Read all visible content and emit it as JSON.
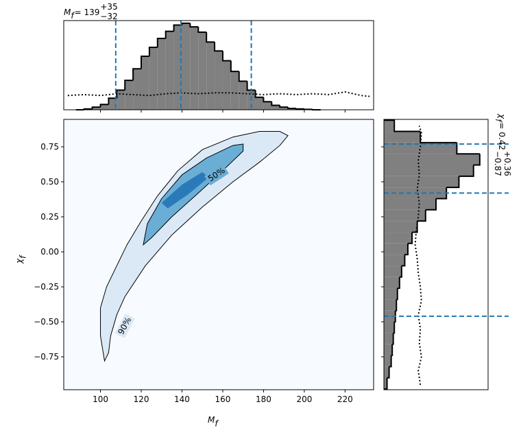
{
  "chart_data": {
    "type": "corner",
    "top_title": {
      "base": "M",
      "sub": "f",
      "eq": " = 139",
      "plus": "+35",
      "minus": "−32"
    },
    "right_title": {
      "base": "χ",
      "sub": "f",
      "eq": " = 0.42",
      "plus": "+0.36",
      "minus": "−0.87"
    },
    "xlabel": {
      "base": "M",
      "sub": "f"
    },
    "ylabel": {
      "base": "χ",
      "sub": "f"
    },
    "xlim": [
      82,
      234
    ],
    "ylim": [
      -0.985,
      0.946
    ],
    "xticks": [
      100,
      120,
      140,
      160,
      180,
      200,
      220
    ],
    "yticks": [
      {
        "value": -0.75,
        "label": "−0.75"
      },
      {
        "value": -0.5,
        "label": "−0.50"
      },
      {
        "value": -0.25,
        "label": "−0.25"
      },
      {
        "value": 0,
        "label": "0.00"
      },
      0.25,
      {
        "value": 0.5,
        "label": "0.50"
      },
      0.75
    ],
    "background": "#f7fbff",
    "contours": [
      {
        "label": "90%",
        "fill": "#dbe9f6",
        "x": [
          102,
          100,
          100,
          103,
          108,
          113,
          120,
          128,
          138,
          150,
          165,
          178,
          188,
          192,
          188,
          178,
          165,
          150,
          135,
          122,
          112,
          108,
          105,
          104
        ],
        "y": [
          -0.78,
          -0.6,
          -0.4,
          -0.25,
          -0.1,
          0.05,
          0.22,
          0.4,
          0.58,
          0.73,
          0.82,
          0.86,
          0.86,
          0.83,
          0.76,
          0.64,
          0.5,
          0.32,
          0.12,
          -0.1,
          -0.32,
          -0.45,
          -0.6,
          -0.72
        ]
      },
      {
        "label": "50%",
        "fill": "#6aaed6",
        "x": [
          121,
          123,
          130,
          140,
          152,
          165,
          170,
          170,
          160,
          148,
          135,
          125
        ],
        "y": [
          0.05,
          0.2,
          0.38,
          0.55,
          0.67,
          0.76,
          0.77,
          0.72,
          0.58,
          0.42,
          0.25,
          0.1
        ]
      },
      {
        "fill": "#2a7ab9",
        "x": [
          130,
          140,
          150,
          153,
          143,
          133
        ],
        "y": [
          0.35,
          0.48,
          0.57,
          0.53,
          0.41,
          0.31
        ]
      }
    ],
    "hist_color": "#808080",
    "quantile_color": "#1f77b4",
    "top_hist": {
      "ylim": [
        0,
        1.0
      ],
      "bins": [
        88,
        92,
        96,
        100,
        104,
        108,
        112,
        116,
        120,
        124,
        128,
        132,
        136,
        140,
        144,
        148,
        152,
        156,
        160,
        164,
        168,
        172,
        176,
        180,
        184,
        188,
        192,
        196,
        200,
        204,
        208
      ],
      "values": [
        0.0,
        0.01,
        0.03,
        0.06,
        0.13,
        0.22,
        0.33,
        0.46,
        0.6,
        0.7,
        0.8,
        0.88,
        0.95,
        0.97,
        0.93,
        0.87,
        0.76,
        0.66,
        0.55,
        0.43,
        0.32,
        0.22,
        0.14,
        0.09,
        0.05,
        0.03,
        0.015,
        0.01,
        0.005,
        0.0
      ],
      "prior_x": [
        84,
        92,
        100,
        108,
        116,
        124,
        132,
        140,
        148,
        156,
        164,
        172,
        180,
        188,
        196,
        204,
        212,
        220,
        228,
        232
      ],
      "prior": [
        0.16,
        0.17,
        0.16,
        0.18,
        0.17,
        0.16,
        0.18,
        0.19,
        0.18,
        0.19,
        0.19,
        0.18,
        0.17,
        0.18,
        0.17,
        0.18,
        0.17,
        0.2,
        0.16,
        0.15
      ],
      "quantiles": [
        107.5,
        139.5,
        174
      ]
    },
    "right_hist": {
      "xlim": [
        0,
        1.0
      ],
      "bins": [
        -0.98,
        -0.9,
        -0.82,
        -0.74,
        -0.66,
        -0.58,
        -0.5,
        -0.42,
        -0.34,
        -0.26,
        -0.18,
        -0.1,
        -0.02,
        0.06,
        0.14,
        0.22,
        0.3,
        0.38,
        0.46,
        0.54,
        0.62,
        0.7,
        0.78,
        0.86,
        0.94
      ],
      "values": [
        0.03,
        0.05,
        0.07,
        0.08,
        0.09,
        0.1,
        0.11,
        0.12,
        0.13,
        0.15,
        0.17,
        0.2,
        0.23,
        0.27,
        0.32,
        0.4,
        0.5,
        0.6,
        0.72,
        0.86,
        0.92,
        0.7,
        0.35,
        0.1
      ],
      "prior_y": [
        -0.95,
        -0.85,
        -0.75,
        -0.65,
        -0.55,
        -0.45,
        -0.35,
        -0.25,
        -0.15,
        -0.05,
        0.05,
        0.15,
        0.25,
        0.35,
        0.45,
        0.55,
        0.65,
        0.75,
        0.85,
        0.9
      ],
      "prior": [
        0.35,
        0.33,
        0.36,
        0.34,
        0.35,
        0.33,
        0.36,
        0.35,
        0.33,
        0.32,
        0.3,
        0.31,
        0.33,
        0.34,
        0.32,
        0.34,
        0.33,
        0.35,
        0.36,
        0.34
      ],
      "quantiles": [
        0.77,
        0.42,
        -0.46
      ]
    }
  }
}
